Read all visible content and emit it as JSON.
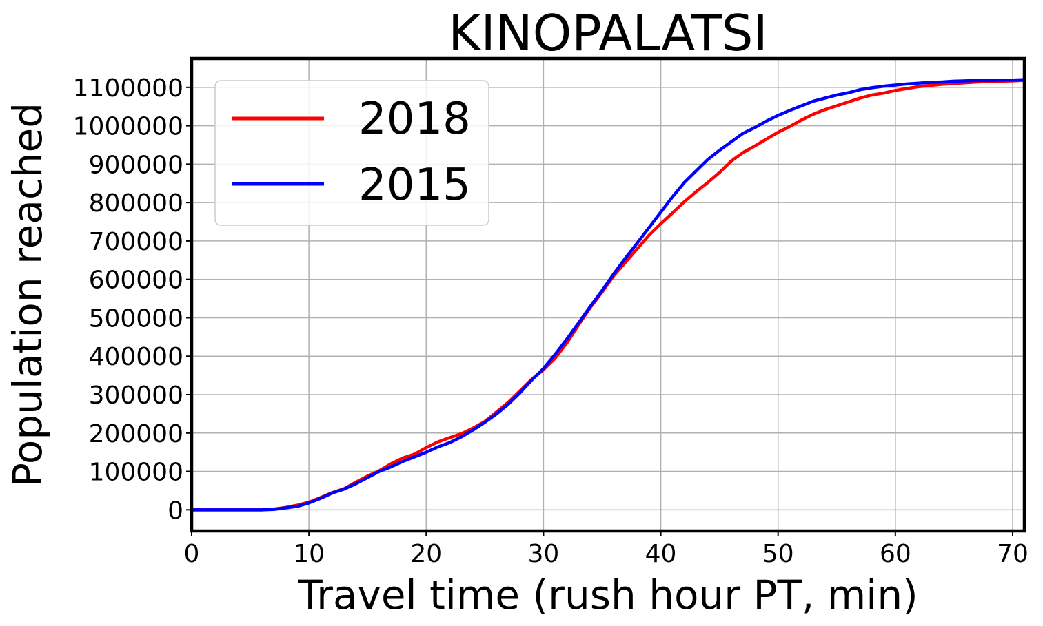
{
  "chart_data": {
    "type": "line",
    "title": "KINOPALATSI",
    "xlabel": "Travel time (rush hour PT, min)",
    "ylabel": "Population reached",
    "xlim": [
      0,
      71
    ],
    "ylim": [
      -55000,
      1175000
    ],
    "xticks": [
      0,
      10,
      20,
      30,
      40,
      50,
      60,
      70
    ],
    "yticks": [
      0,
      100000,
      200000,
      300000,
      400000,
      500000,
      600000,
      700000,
      800000,
      900000,
      1000000,
      1100000
    ],
    "grid": true,
    "legend_position": "upper-left",
    "series": [
      {
        "name": "2018",
        "color": "#ff0000",
        "x": [
          0,
          1,
          2,
          3,
          4,
          5,
          6,
          7,
          8,
          9,
          10,
          11,
          12,
          13,
          14,
          15,
          16,
          17,
          18,
          19,
          20,
          21,
          22,
          23,
          24,
          25,
          26,
          27,
          28,
          29,
          30,
          31,
          32,
          33,
          34,
          35,
          36,
          37,
          38,
          39,
          40,
          41,
          42,
          43,
          44,
          45,
          46,
          47,
          48,
          49,
          50,
          51,
          52,
          53,
          54,
          55,
          56,
          57,
          58,
          59,
          60,
          61,
          62,
          63,
          64,
          65,
          66,
          67,
          68,
          69,
          70,
          71
        ],
        "y": [
          0,
          0,
          0,
          0,
          0,
          0,
          0,
          2000,
          6000,
          12000,
          20000,
          32000,
          45000,
          55000,
          72000,
          88000,
          102000,
          120000,
          135000,
          145000,
          162000,
          177000,
          188000,
          198000,
          213000,
          230000,
          255000,
          280000,
          310000,
          340000,
          365000,
          395000,
          435000,
          482000,
          527000,
          567000,
          610000,
          645000,
          680000,
          715000,
          745000,
          773000,
          802000,
          828000,
          852000,
          878000,
          908000,
          930000,
          947000,
          965000,
          983000,
          998000,
          1015000,
          1030000,
          1042000,
          1052000,
          1062000,
          1072000,
          1080000,
          1085000,
          1092000,
          1097000,
          1102000,
          1105000,
          1108000,
          1110000,
          1112000,
          1114000,
          1115000,
          1116000,
          1117000,
          1118000
        ]
      },
      {
        "name": "2015",
        "color": "#0000ff",
        "x": [
          0,
          1,
          2,
          3,
          4,
          5,
          6,
          7,
          8,
          9,
          10,
          11,
          12,
          13,
          14,
          15,
          16,
          17,
          18,
          19,
          20,
          21,
          22,
          23,
          24,
          25,
          26,
          27,
          28,
          29,
          30,
          31,
          32,
          33,
          34,
          35,
          36,
          37,
          38,
          39,
          40,
          41,
          42,
          43,
          44,
          45,
          46,
          47,
          48,
          49,
          50,
          51,
          52,
          53,
          54,
          55,
          56,
          57,
          58,
          59,
          60,
          61,
          62,
          63,
          64,
          65,
          66,
          67,
          68,
          69,
          70,
          71
        ],
        "y": [
          0,
          0,
          0,
          0,
          0,
          0,
          0,
          1000,
          5000,
          9000,
          18000,
          30000,
          44000,
          54000,
          68000,
          84000,
          100000,
          112000,
          126000,
          138000,
          150000,
          164000,
          175000,
          190000,
          208000,
          228000,
          250000,
          275000,
          305000,
          338000,
          368000,
          405000,
          445000,
          487000,
          530000,
          571000,
          615000,
          656000,
          695000,
          735000,
          775000,
          815000,
          852000,
          882000,
          912000,
          936000,
          958000,
          980000,
          995000,
          1012000,
          1027000,
          1040000,
          1052000,
          1064000,
          1072000,
          1080000,
          1086000,
          1094000,
          1099000,
          1103000,
          1106000,
          1109000,
          1111000,
          1113000,
          1114000,
          1116000,
          1117000,
          1118000,
          1118000,
          1119000,
          1119000,
          1120000
        ]
      }
    ]
  }
}
